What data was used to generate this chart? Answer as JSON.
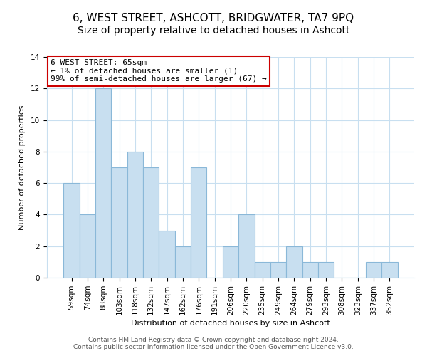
{
  "title": "6, WEST STREET, ASHCOTT, BRIDGWATER, TA7 9PQ",
  "subtitle": "Size of property relative to detached houses in Ashcott",
  "xlabel": "Distribution of detached houses by size in Ashcott",
  "ylabel": "Number of detached properties",
  "bar_color": "#c8dff0",
  "bar_edge_color": "#8ab8d8",
  "annotation_box_text": "6 WEST STREET: 65sqm\n← 1% of detached houses are smaller (1)\n99% of semi-detached houses are larger (67) →",
  "annotation_box_edge_color": "#cc0000",
  "footer_line1": "Contains HM Land Registry data © Crown copyright and database right 2024.",
  "footer_line2": "Contains public sector information licensed under the Open Government Licence v3.0.",
  "categories": [
    "59sqm",
    "74sqm",
    "88sqm",
    "103sqm",
    "118sqm",
    "132sqm",
    "147sqm",
    "162sqm",
    "176sqm",
    "191sqm",
    "206sqm",
    "220sqm",
    "235sqm",
    "249sqm",
    "264sqm",
    "279sqm",
    "293sqm",
    "308sqm",
    "323sqm",
    "337sqm",
    "352sqm"
  ],
  "values": [
    6,
    4,
    12,
    7,
    8,
    7,
    3,
    2,
    7,
    0,
    2,
    4,
    1,
    1,
    2,
    1,
    1,
    0,
    0,
    1,
    1
  ],
  "ylim": [
    0,
    14
  ],
  "yticks": [
    0,
    2,
    4,
    6,
    8,
    10,
    12,
    14
  ],
  "background_color": "#ffffff",
  "grid_color": "#c8dff0",
  "title_fontsize": 11,
  "subtitle_fontsize": 10,
  "axis_fontsize": 8,
  "tick_fontsize": 7.5,
  "footer_fontsize": 6.5
}
